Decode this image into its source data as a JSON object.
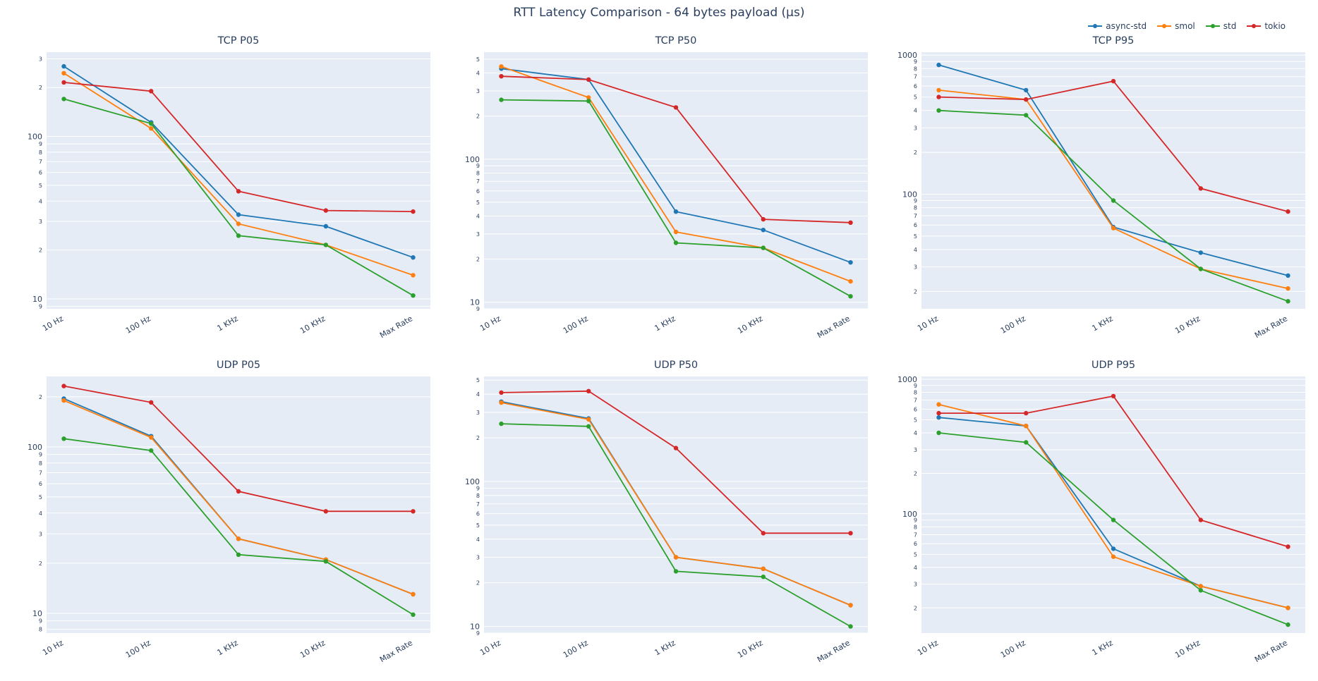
{
  "title": "RTT Latency Comparison - 64 bytes payload (µs)",
  "legend": {
    "items": [
      "async-std",
      "smol",
      "std",
      "tokio"
    ]
  },
  "colors": {
    "async-std": "#1f77b4",
    "smol": "#ff7f0e",
    "std": "#2ca02c",
    "tokio": "#d62728",
    "plot_background": "#e5ecf6",
    "grid": "#ffffff",
    "text": "#2a3f5f"
  },
  "categories": [
    "10 Hz",
    "100 Hz",
    "1 KHz",
    "10 KHz",
    "Max Rate"
  ],
  "chart_data": [
    {
      "type": "line",
      "title": "TCP P05",
      "ylog": true,
      "ylim": [
        8.7,
        330
      ],
      "categories": [
        "10 Hz",
        "100 Hz",
        "1 KHz",
        "10 KHz",
        "Max Rate"
      ],
      "series": [
        {
          "name": "async-std",
          "values": [
            270,
            122,
            33,
            28,
            18
          ]
        },
        {
          "name": "smol",
          "values": [
            245,
            112,
            29,
            21.5,
            14
          ]
        },
        {
          "name": "std",
          "values": [
            170,
            120,
            24.5,
            21.5,
            10.5
          ]
        },
        {
          "name": "tokio",
          "values": [
            215,
            190,
            46,
            35,
            34.5
          ]
        }
      ]
    },
    {
      "type": "line",
      "title": "TCP P50",
      "ylog": true,
      "ylim": [
        9,
        560
      ],
      "categories": [
        "10 Hz",
        "100 Hz",
        "1 KHz",
        "10 KHz",
        "Max Rate"
      ],
      "series": [
        {
          "name": "async-std",
          "values": [
            430,
            360,
            43,
            32,
            19
          ]
        },
        {
          "name": "smol",
          "values": [
            445,
            270,
            31,
            24,
            14
          ]
        },
        {
          "name": "std",
          "values": [
            260,
            255,
            26,
            24,
            11
          ]
        },
        {
          "name": "tokio",
          "values": [
            380,
            360,
            230,
            38,
            36
          ]
        }
      ]
    },
    {
      "type": "line",
      "title": "TCP P95",
      "ylog": true,
      "ylim": [
        15,
        1050
      ],
      "categories": [
        "10 Hz",
        "100 Hz",
        "1 KHz",
        "10 KHz",
        "Max Rate"
      ],
      "series": [
        {
          "name": "async-std",
          "values": [
            850,
            560,
            58,
            38,
            26
          ]
        },
        {
          "name": "smol",
          "values": [
            560,
            480,
            57,
            29,
            21
          ]
        },
        {
          "name": "std",
          "values": [
            400,
            370,
            90,
            29,
            17
          ]
        },
        {
          "name": "tokio",
          "values": [
            500,
            480,
            650,
            110,
            75
          ]
        }
      ]
    },
    {
      "type": "line",
      "title": "UDP P05",
      "ylog": true,
      "ylim": [
        7.6,
        265
      ],
      "categories": [
        "10 Hz",
        "100 Hz",
        "1 KHz",
        "10 KHz",
        "Max Rate"
      ],
      "series": [
        {
          "name": "async-std",
          "values": [
            195,
            116,
            28,
            21,
            13
          ]
        },
        {
          "name": "smol",
          "values": [
            190,
            114,
            28,
            21,
            13
          ]
        },
        {
          "name": "std",
          "values": [
            112,
            95,
            22.5,
            20.5,
            9.8
          ]
        },
        {
          "name": "tokio",
          "values": [
            232,
            185,
            54,
            41,
            41
          ]
        }
      ]
    },
    {
      "type": "line",
      "title": "UDP P50",
      "ylog": true,
      "ylim": [
        9,
        530
      ],
      "categories": [
        "10 Hz",
        "100 Hz",
        "1 KHz",
        "10 KHz",
        "Max Rate"
      ],
      "series": [
        {
          "name": "async-std",
          "values": [
            355,
            272,
            30,
            25,
            14
          ]
        },
        {
          "name": "smol",
          "values": [
            350,
            268,
            30,
            25,
            14
          ]
        },
        {
          "name": "std",
          "values": [
            250,
            240,
            24,
            22,
            10
          ]
        },
        {
          "name": "tokio",
          "values": [
            410,
            420,
            170,
            44,
            44
          ]
        }
      ]
    },
    {
      "type": "line",
      "title": "UDP P95",
      "ylog": true,
      "ylim": [
        13,
        1050
      ],
      "categories": [
        "10 Hz",
        "100 Hz",
        "1 KHz",
        "10 KHz",
        "Max Rate"
      ],
      "series": [
        {
          "name": "async-std",
          "values": [
            520,
            450,
            55,
            29,
            20
          ]
        },
        {
          "name": "smol",
          "values": [
            650,
            450,
            48,
            29,
            20
          ]
        },
        {
          "name": "std",
          "values": [
            400,
            340,
            90,
            27,
            15
          ]
        },
        {
          "name": "tokio",
          "values": [
            560,
            560,
            750,
            90,
            57
          ]
        }
      ]
    }
  ]
}
